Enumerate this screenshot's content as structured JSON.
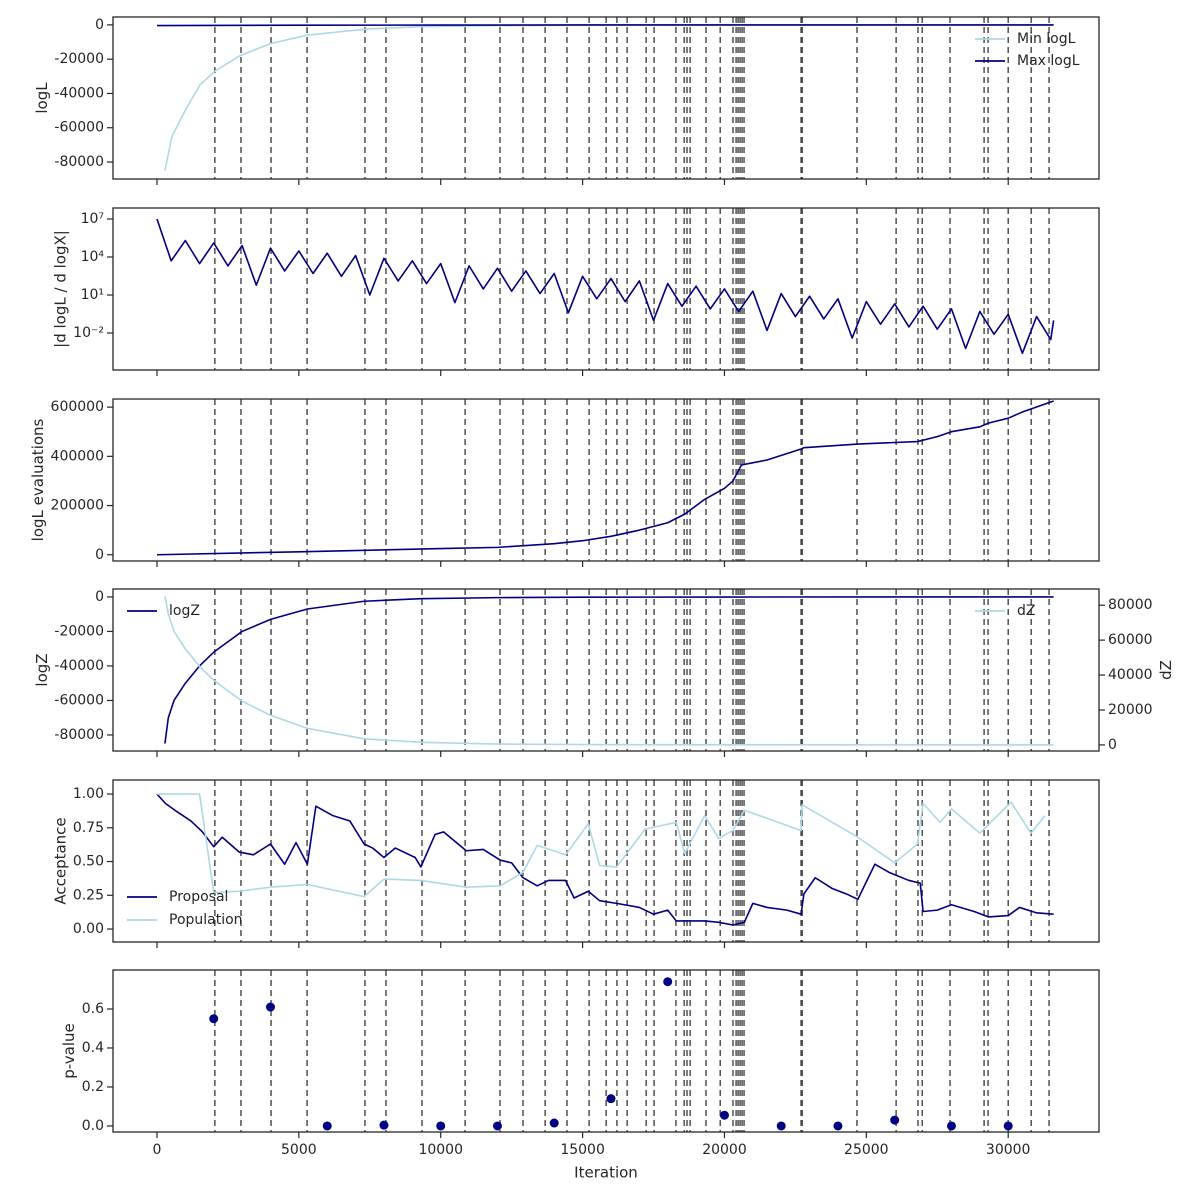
{
  "vlines": [
    2040,
    2960,
    4020,
    5290,
    7330,
    8070,
    9340,
    10860,
    12090,
    12900,
    13680,
    14450,
    15230,
    15830,
    16210,
    16570,
    17240,
    17520,
    18290,
    18580,
    18680,
    18790,
    19350,
    19850,
    20300,
    20410,
    20480,
    20550,
    20620,
    20690,
    22700,
    22740,
    24670,
    26050,
    26820,
    26970,
    27950,
    29150,
    29290,
    30000,
    30810,
    31440
  ],
  "chart_data": [
    {
      "type": "line",
      "ylabel": "logL",
      "xlim": [
        -1550,
        33200
      ],
      "xticks": [
        0,
        5000,
        10000,
        15000,
        20000,
        25000,
        30000
      ],
      "ylim": [
        -89900,
        4600
      ],
      "yticks": [
        0,
        -20000,
        -40000,
        -60000,
        -80000
      ],
      "legend": "upper right",
      "series": [
        {
          "name": "Min logL",
          "color": "#add8e6",
          "x": [
            280,
            530,
            990,
            1515,
            2044,
            2925,
            3983,
            5287,
            7332,
            9341,
            12090,
            15000,
            20000,
            25000,
            31600
          ],
          "values": [
            -85000,
            -65000,
            -50000,
            -35000,
            -27000,
            -18000,
            -11000,
            -6000,
            -2500,
            -1000,
            -400,
            -150,
            -50,
            -20,
            -5
          ]
        },
        {
          "name": "Max logL",
          "color": "#000080",
          "x": [
            0,
            5000,
            10000,
            15000,
            20000,
            25000,
            31600
          ],
          "values": [
            -400,
            -200,
            -100,
            -50,
            -20,
            -10,
            -5
          ]
        }
      ]
    },
    {
      "type": "line",
      "ylabel": "|d logL / d logX|",
      "yscale": "log",
      "xlim": [
        -1550,
        33200
      ],
      "xticks": [
        0,
        5000,
        10000,
        15000,
        20000,
        25000,
        30000
      ],
      "ylim": [
        1.2e-05,
        74000000
      ],
      "yticks": [
        {
          "value": 10000000,
          "label": "10⁷"
        },
        {
          "value": 10000,
          "label": "10⁴"
        },
        {
          "value": 10,
          "label": "10¹"
        },
        {
          "value": 0.01,
          "label": "10⁻²"
        }
      ],
      "series": [
        {
          "color": "#000080",
          "x": [
            0,
            500,
            1000,
            1500,
            2000,
            2500,
            3000,
            3500,
            4000,
            4500,
            5000,
            5500,
            6000,
            6500,
            7000,
            7500,
            8000,
            8500,
            9000,
            9500,
            10000,
            10500,
            11000,
            11500,
            12000,
            12500,
            13000,
            13500,
            14000,
            14500,
            15000,
            15500,
            16000,
            16500,
            17000,
            17500,
            18000,
            18500,
            19000,
            19500,
            20000,
            20500,
            21000,
            21500,
            22000,
            22500,
            23000,
            23500,
            24000,
            24500,
            25000,
            25500,
            26000,
            26500,
            27000,
            27500,
            28000,
            28500,
            29000,
            29500,
            30000,
            30500,
            31000,
            31500,
            31600
          ],
          "values": [
            10000000,
            5000,
            200000,
            3000,
            130000,
            2000,
            80000,
            60,
            50000,
            800,
            30000,
            500,
            20000,
            300,
            13000,
            10,
            8000,
            130,
            5000,
            80,
            3000,
            2.5,
            2000,
            30,
            1300,
            20,
            800,
            13,
            500,
            0.4,
            300,
            5,
            200,
            3,
            130,
            0.1,
            80,
            1.3,
            50,
            0.8,
            30,
            0.5,
            20,
            0.016,
            13,
            0.2,
            8,
            0.13,
            5,
            0.004,
            3,
            0.05,
            2,
            0.03,
            1.3,
            0.02,
            0.8,
            0.0006,
            0.5,
            0.008,
            0.3,
            0.00025,
            0.2,
            0.003,
            0.1
          ]
        }
      ]
    },
    {
      "type": "line",
      "ylabel": "logL evaluations",
      "xlim": [
        -1550,
        33200
      ],
      "xticks": [
        0,
        5000,
        10000,
        15000,
        20000,
        25000,
        30000
      ],
      "ylim": [
        -25400,
        633000
      ],
      "yticks": [
        0,
        200000,
        400000,
        600000
      ],
      "series": [
        {
          "color": "#000080",
          "x": [
            0,
            5000,
            10000,
            12000,
            14000,
            15000,
            16000,
            17000,
            18000,
            18600,
            19300,
            20000,
            20300,
            20600,
            21500,
            22700,
            22800,
            24700,
            26800,
            27500,
            28000,
            29000,
            29300,
            30000,
            30500,
            31600
          ],
          "values": [
            0,
            12000,
            25000,
            30000,
            45000,
            57000,
            75000,
            100000,
            130000,
            165000,
            225000,
            270000,
            300000,
            365000,
            385000,
            430000,
            435000,
            450000,
            460000,
            480000,
            500000,
            520000,
            535000,
            555000,
            580000,
            625000
          ]
        }
      ]
    },
    {
      "type": "line",
      "ylabel": "logZ",
      "y2label": "dZ",
      "xlim": [
        -1550,
        33200
      ],
      "xticks": [
        0,
        5000,
        10000,
        15000,
        20000,
        25000,
        30000
      ],
      "ylim": [
        -89300,
        4600
      ],
      "yticks": [
        0,
        -20000,
        -40000,
        -60000,
        -80000
      ],
      "y2lim": [
        -3480,
        89270
      ],
      "y2ticks": [
        0,
        20000,
        40000,
        60000,
        80000
      ],
      "legend": "upper left",
      "legend2": "upper right",
      "series": [
        {
          "name": "logZ",
          "color": "#000080",
          "x": [
            280,
            400,
            600,
            1000,
            1500,
            2000,
            3000,
            4000,
            5300,
            7300,
            9300,
            12000,
            15000,
            20000,
            31600
          ],
          "values": [
            -85000,
            -70000,
            -60000,
            -50000,
            -40000,
            -32000,
            -20000,
            -13000,
            -7000,
            -2500,
            -1000,
            -400,
            -150,
            -50,
            0
          ]
        },
        {
          "name": "dZ",
          "color": "#add8e6",
          "axis": "y2",
          "x": [
            280,
            400,
            600,
            1000,
            1500,
            2000,
            3000,
            4000,
            5300,
            7300,
            9300,
            12000,
            15000,
            20000,
            31600
          ],
          "values": [
            85000,
            75000,
            65000,
            55000,
            45000,
            37000,
            25000,
            17000,
            9500,
            3500,
            1500,
            500,
            200,
            50,
            0
          ]
        }
      ]
    },
    {
      "type": "line",
      "ylabel": "Acceptance",
      "xlim": [
        -1550,
        33200
      ],
      "xticks": [
        0,
        5000,
        10000,
        15000,
        20000,
        25000,
        30000
      ],
      "ylim": [
        -0.096,
        1.104
      ],
      "yticks": [
        {
          "value": 0,
          "label": "0.00"
        },
        {
          "value": 0.25,
          "label": "0.25"
        },
        {
          "value": 0.5,
          "label": "0.50"
        },
        {
          "value": 0.75,
          "label": "0.75"
        },
        {
          "value": 1,
          "label": "1.00"
        }
      ],
      "legend": "lower left",
      "series": [
        {
          "name": "Proposal",
          "color": "#000080",
          "x": [
            0,
            300,
            700,
            1200,
            1600,
            2000,
            2300,
            2900,
            3400,
            4000,
            4500,
            4900,
            5300,
            5600,
            6200,
            6800,
            7300,
            7600,
            8000,
            8400,
            9100,
            9300,
            9800,
            10100,
            10900,
            11500,
            12100,
            12500,
            12900,
            13400,
            13800,
            14400,
            14700,
            15200,
            15600,
            16200,
            17000,
            17500,
            18000,
            18300,
            18700,
            19300,
            19800,
            20300,
            20700,
            21000,
            21500,
            22200,
            22700,
            22800,
            23200,
            23800,
            24300,
            24700,
            25300,
            25800,
            26500,
            26900,
            27000,
            27500,
            28000,
            28800,
            29300,
            30000,
            30400,
            31000,
            31600
          ],
          "values": [
            1.0,
            0.93,
            0.87,
            0.8,
            0.72,
            0.61,
            0.68,
            0.57,
            0.55,
            0.63,
            0.48,
            0.64,
            0.48,
            0.91,
            0.84,
            0.8,
            0.63,
            0.6,
            0.53,
            0.6,
            0.53,
            0.46,
            0.7,
            0.72,
            0.58,
            0.59,
            0.51,
            0.49,
            0.38,
            0.32,
            0.36,
            0.36,
            0.23,
            0.28,
            0.21,
            0.19,
            0.16,
            0.11,
            0.14,
            0.06,
            0.06,
            0.06,
            0.05,
            0.03,
            0.05,
            0.19,
            0.16,
            0.14,
            0.11,
            0.26,
            0.38,
            0.3,
            0.26,
            0.22,
            0.48,
            0.42,
            0.36,
            0.34,
            0.13,
            0.14,
            0.18,
            0.13,
            0.09,
            0.1,
            0.16,
            0.12,
            0.11
          ]
        },
        {
          "name": "Population",
          "color": "#add8e6",
          "x": [
            0,
            1500,
            2000,
            2900,
            4000,
            5300,
            7300,
            8000,
            9300,
            10900,
            12100,
            12900,
            13400,
            14400,
            15200,
            15600,
            16200,
            17200,
            18300,
            18600,
            19300,
            19800,
            20300,
            20700,
            22700,
            22740,
            24700,
            26000,
            26800,
            27000,
            27600,
            28000,
            29000,
            30100,
            30800,
            31300
          ],
          "values": [
            1.0,
            1.0,
            0.27,
            0.28,
            0.31,
            0.33,
            0.24,
            0.37,
            0.36,
            0.31,
            0.32,
            0.42,
            0.62,
            0.55,
            0.78,
            0.47,
            0.46,
            0.74,
            0.79,
            0.56,
            0.84,
            0.67,
            0.73,
            0.88,
            0.73,
            0.92,
            0.68,
            0.49,
            0.63,
            0.93,
            0.79,
            0.89,
            0.71,
            0.94,
            0.71,
            0.84
          ]
        }
      ]
    },
    {
      "type": "scatter",
      "ylabel": "p-value",
      "xlabel": "Iteration",
      "xlim": [
        -1550,
        33200
      ],
      "xticks": [
        0,
        5000,
        10000,
        15000,
        20000,
        25000,
        30000
      ],
      "ylim": [
        -0.031,
        0.8
      ],
      "yticks": [
        {
          "value": 0,
          "label": "0.0"
        },
        {
          "value": 0.2,
          "label": "0.2"
        },
        {
          "value": 0.4,
          "label": "0.4"
        },
        {
          "value": 0.6,
          "label": "0.6"
        }
      ],
      "series": [
        {
          "color": "#000080",
          "x": [
            2000,
            4000,
            6000,
            8000,
            10000,
            12000,
            14000,
            16000,
            18000,
            20000,
            22000,
            24000,
            26000,
            28000,
            30000
          ],
          "values": [
            0.55,
            0.61,
            0,
            0.004,
            0,
            0,
            0.015,
            0.14,
            0.74,
            0.055,
            0,
            0,
            0.03,
            0,
            0
          ]
        }
      ]
    }
  ]
}
